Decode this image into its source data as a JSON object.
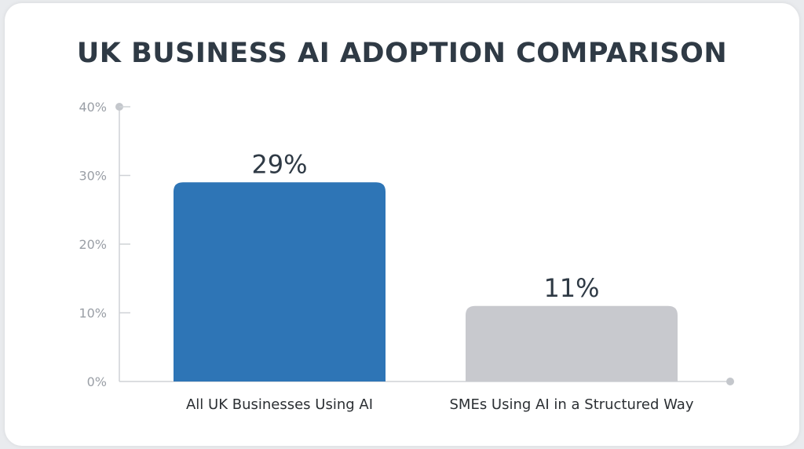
{
  "chart_data": {
    "type": "bar",
    "title": "UK BUSINESS AI ADOPTION COMPARISON",
    "categories": [
      "All UK Businesses Using AI",
      "SMEs Using AI in a Structured Way"
    ],
    "values": [
      29,
      11
    ],
    "value_labels": [
      "29%",
      "11%"
    ],
    "colors": [
      "#2e75b6",
      "#c8c9ce"
    ],
    "ylim": [
      0,
      40
    ],
    "yticks": [
      0,
      10,
      20,
      30,
      40
    ],
    "ytick_labels": [
      "0%",
      "10%",
      "20%",
      "30%",
      "40%"
    ],
    "grid": false,
    "legend": "none"
  }
}
